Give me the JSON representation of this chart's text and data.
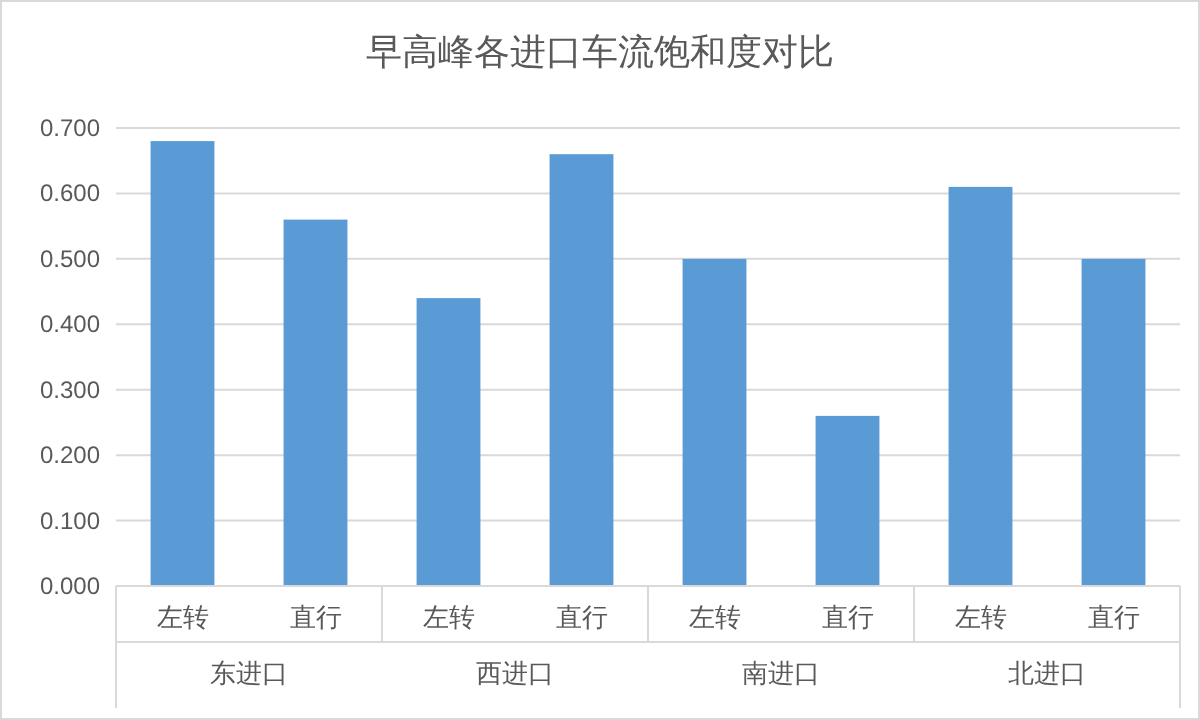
{
  "chart_data": {
    "type": "bar",
    "title": "早高峰各进口车流饱和度对比",
    "categories": [
      "左转",
      "直行",
      "左转",
      "直行",
      "左转",
      "直行",
      "左转",
      "直行"
    ],
    "values": [
      0.68,
      0.56,
      0.44,
      0.66,
      0.5,
      0.26,
      0.61,
      0.5
    ],
    "color": "#5b9bd5",
    "annotations": [
      "东进口",
      "西进口",
      "南进口",
      "北进口"
    ],
    "ylim": [
      0,
      0.7
    ],
    "yticks": [
      {
        "value": 0,
        "label": "0.000"
      },
      {
        "value": 0.1,
        "label": "0.100"
      },
      {
        "value": 0.2,
        "label": "0.200"
      },
      {
        "value": 0.3,
        "label": "0.300"
      },
      {
        "value": 0.4,
        "label": "0.400"
      },
      {
        "value": 0.5,
        "label": "0.500"
      },
      {
        "value": 0.6,
        "label": "0.600"
      },
      {
        "value": 0.7,
        "label": "0.700"
      }
    ],
    "grid": "y"
  }
}
